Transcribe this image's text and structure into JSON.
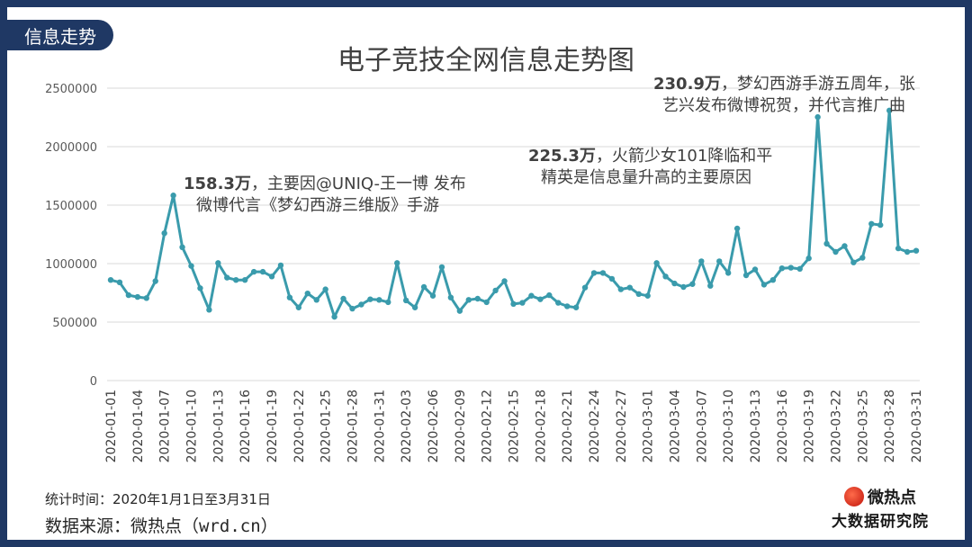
{
  "section_tag": "信息走势",
  "footer": {
    "stat_period": "统计时间：2020年1月1日至3月31日",
    "source": "数据来源：微热点（wrd.cn）"
  },
  "logo": {
    "name": "微热点",
    "subtitle": "大数据研究院"
  },
  "colors": {
    "line": "#3a9bac",
    "grid": "#d9d9d9",
    "banner": "#1f3864",
    "text": "#404040"
  },
  "chart_data": {
    "type": "line",
    "title": "电子竞技全网信息走势图",
    "ylim": [
      0,
      2500000
    ],
    "yticks": [
      0,
      500000,
      1000000,
      1500000,
      2000000,
      2500000
    ],
    "grid": true,
    "x": [
      "2020-01-01",
      "2020-01-02",
      "2020-01-03",
      "2020-01-04",
      "2020-01-05",
      "2020-01-06",
      "2020-01-07",
      "2020-01-08",
      "2020-01-09",
      "2020-01-10",
      "2020-01-11",
      "2020-01-12",
      "2020-01-13",
      "2020-01-14",
      "2020-01-15",
      "2020-01-16",
      "2020-01-17",
      "2020-01-18",
      "2020-01-19",
      "2020-01-20",
      "2020-01-21",
      "2020-01-22",
      "2020-01-23",
      "2020-01-24",
      "2020-01-25",
      "2020-01-26",
      "2020-01-27",
      "2020-01-28",
      "2020-01-29",
      "2020-01-30",
      "2020-01-31",
      "2020-02-01",
      "2020-02-02",
      "2020-02-03",
      "2020-02-04",
      "2020-02-05",
      "2020-02-06",
      "2020-02-07",
      "2020-02-08",
      "2020-02-09",
      "2020-02-10",
      "2020-02-11",
      "2020-02-12",
      "2020-02-13",
      "2020-02-14",
      "2020-02-15",
      "2020-02-16",
      "2020-02-17",
      "2020-02-18",
      "2020-02-19",
      "2020-02-20",
      "2020-02-21",
      "2020-02-22",
      "2020-02-23",
      "2020-02-24",
      "2020-02-25",
      "2020-02-26",
      "2020-02-27",
      "2020-02-28",
      "2020-02-29",
      "2020-03-01",
      "2020-03-02",
      "2020-03-03",
      "2020-03-04",
      "2020-03-05",
      "2020-03-06",
      "2020-03-07",
      "2020-03-08",
      "2020-03-09",
      "2020-03-10",
      "2020-03-11",
      "2020-03-12",
      "2020-03-13",
      "2020-03-14",
      "2020-03-15",
      "2020-03-16",
      "2020-03-17",
      "2020-03-18",
      "2020-03-19",
      "2020-03-20",
      "2020-03-21",
      "2020-03-22",
      "2020-03-23",
      "2020-03-24",
      "2020-03-25",
      "2020-03-26",
      "2020-03-27",
      "2020-03-28",
      "2020-03-29",
      "2020-03-30",
      "2020-03-31"
    ],
    "xticks": [
      "2020-01-01",
      "2020-01-04",
      "2020-01-07",
      "2020-01-10",
      "2020-01-13",
      "2020-01-16",
      "2020-01-19",
      "2020-01-22",
      "2020-01-25",
      "2020-01-28",
      "2020-01-31",
      "2020-02-03",
      "2020-02-06",
      "2020-02-09",
      "2020-02-12",
      "2020-02-15",
      "2020-02-18",
      "2020-02-21",
      "2020-02-24",
      "2020-02-27",
      "2020-03-01",
      "2020-03-04",
      "2020-03-07",
      "2020-03-10",
      "2020-03-13",
      "2020-03-16",
      "2020-03-19",
      "2020-03-22",
      "2020-03-25",
      "2020-03-28",
      "2020-03-31"
    ],
    "values": [
      860000,
      840000,
      730000,
      715000,
      705000,
      850000,
      1260000,
      1583000,
      1140000,
      980000,
      790000,
      605000,
      1005000,
      880000,
      860000,
      860000,
      930000,
      930000,
      890000,
      985000,
      710000,
      625000,
      745000,
      690000,
      780000,
      545000,
      700000,
      615000,
      650000,
      695000,
      690000,
      670000,
      1005000,
      685000,
      625000,
      800000,
      725000,
      970000,
      710000,
      595000,
      690000,
      700000,
      670000,
      770000,
      850000,
      655000,
      665000,
      725000,
      695000,
      730000,
      665000,
      635000,
      625000,
      795000,
      920000,
      920000,
      870000,
      780000,
      795000,
      740000,
      725000,
      1005000,
      890000,
      830000,
      800000,
      825000,
      1020000,
      810000,
      1020000,
      920000,
      1300000,
      900000,
      950000,
      820000,
      860000,
      960000,
      965000,
      955000,
      1045000,
      2253000,
      1170000,
      1100000,
      1150000,
      1010000,
      1050000,
      1340000,
      1330000,
      2309000,
      1130000,
      1100000,
      1110000
    ],
    "annotations": [
      {
        "highlight": "158.3万",
        "lines": [
          "，主要因@UNIQ-王一博 发布",
          "微博代言《梦幻西游三维版》手游"
        ]
      },
      {
        "highlight": "225.3万",
        "lines": [
          "，火箭少女101降临和平",
          "精英是信息量升高的主要原因"
        ]
      },
      {
        "highlight": "230.9万",
        "lines": [
          "，梦幻西游手游五周年，张",
          "艺兴发布微博祝贺，并代言推广曲"
        ]
      }
    ]
  }
}
